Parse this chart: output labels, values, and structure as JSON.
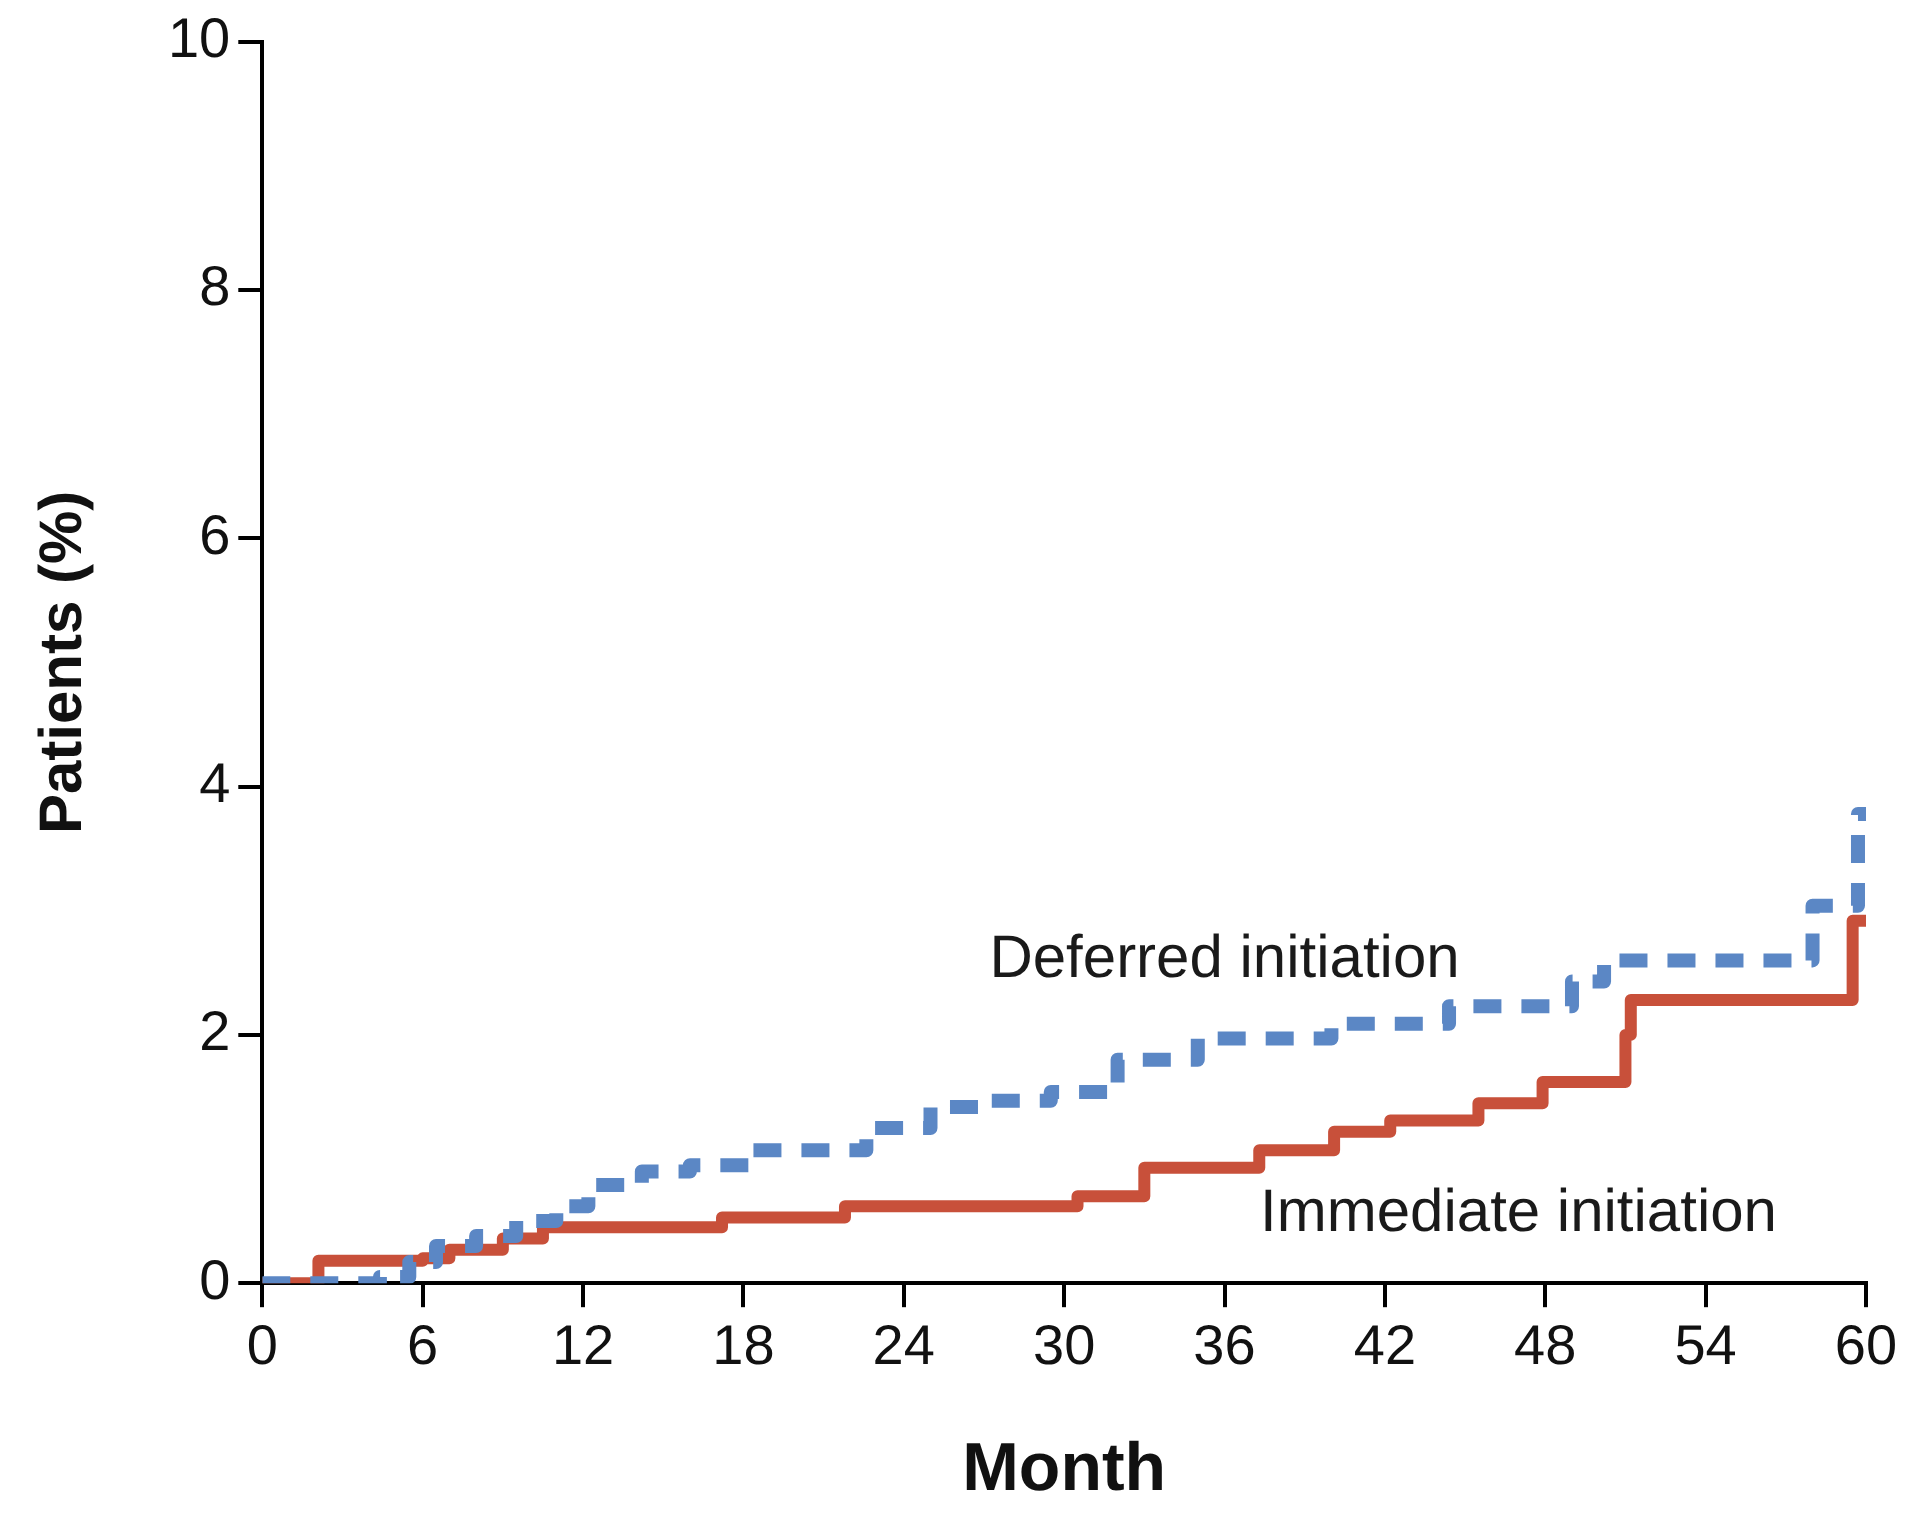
{
  "chart_data": {
    "type": "step",
    "xlabel": "Month",
    "ylabel": "Patients (%)",
    "xlim": [
      0,
      60
    ],
    "xticks": [
      0,
      6,
      12,
      18,
      24,
      30,
      36,
      42,
      48,
      54,
      60
    ],
    "ylim": [
      0,
      10
    ],
    "yticks": [
      0,
      2,
      4,
      6,
      8,
      10
    ],
    "grid": false,
    "legend": false,
    "marker": "none",
    "series": [
      {
        "name": "Deferred initiation",
        "color": "#5b87c5",
        "line_style": "dashed",
        "x": [
          0,
          4.4,
          5.5,
          6.5,
          8,
          9.5,
          11,
          12.2,
          14.2,
          16,
          18.2,
          22.6,
          25,
          27,
          29.5,
          32,
          35,
          40,
          44.4,
          49,
          50.2,
          58,
          59.7,
          60
        ],
        "values": [
          0,
          0.05,
          0.17,
          0.3,
          0.38,
          0.5,
          0.62,
          0.79,
          0.9,
          0.95,
          1.07,
          1.25,
          1.42,
          1.47,
          1.54,
          1.8,
          1.97,
          2.09,
          2.23,
          2.43,
          2.6,
          3.04,
          3.78,
          3.78
        ]
      },
      {
        "name": "Immediate initiation",
        "color": "#c8503a",
        "line_style": "solid",
        "x": [
          0,
          2.1,
          6,
          7,
          9,
          10.5,
          17.2,
          21.8,
          30.5,
          33,
          37.3,
          40.1,
          42.2,
          45.5,
          47.9,
          51,
          51.2,
          59.5,
          60
        ],
        "values": [
          0,
          0.18,
          0.2,
          0.27,
          0.36,
          0.45,
          0.53,
          0.62,
          0.7,
          0.93,
          1.07,
          1.22,
          1.31,
          1.45,
          1.62,
          2.0,
          2.28,
          2.92,
          2.92
        ]
      }
    ]
  }
}
